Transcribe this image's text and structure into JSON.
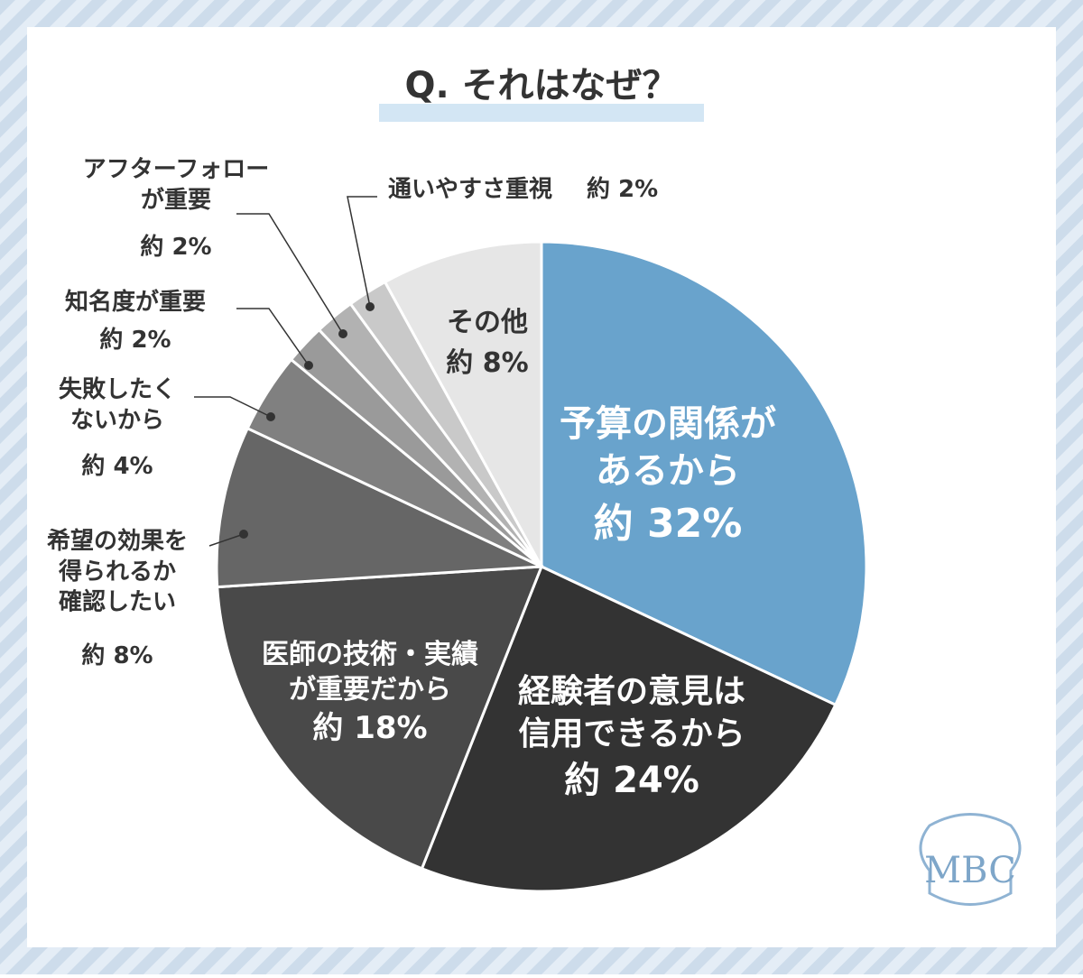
{
  "chart_data": {
    "type": "pie",
    "title": "Q. それはなぜ？",
    "categories": [
      "予算の関係が\nあるから",
      "経験者の意見は\n信用できるから",
      "医師の技術・実績\nが重要だから",
      "希望の効果を\n得られるか\n確認したい",
      "失敗したく\nないから",
      "知名度が重要",
      "アフターフォロー\nが重要",
      "通いやすさ重視",
      "その他"
    ],
    "values": [
      32,
      24,
      18,
      8,
      4,
      2,
      2,
      2,
      8
    ],
    "value_labels": [
      "約 32%",
      "約 24%",
      "約 18%",
      "約 8%",
      "約 4%",
      "約 2%",
      "約 2%",
      "約 2%",
      "約 8%"
    ],
    "colors": [
      "#69a3cc",
      "#333333",
      "#494949",
      "#666666",
      "#808080",
      "#9a9a9a",
      "#b2b2b2",
      "#c9c9c9",
      "#e6e6e6"
    ],
    "logo": "MBC"
  }
}
